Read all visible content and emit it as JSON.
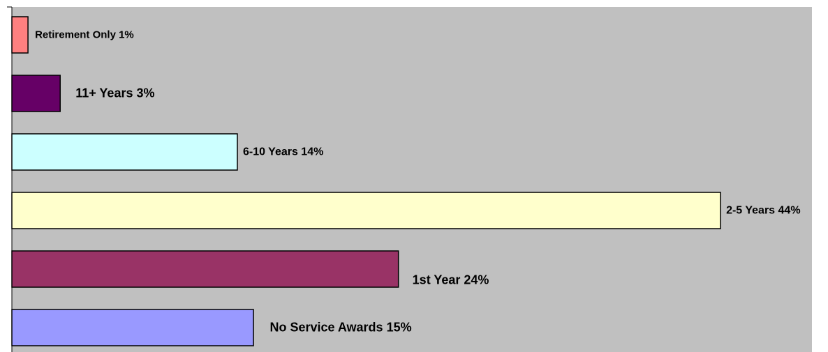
{
  "chart_data": {
    "type": "bar",
    "orientation": "horizontal",
    "values": [
      1,
      3,
      14,
      44,
      24,
      15
    ],
    "value_labels": [
      "Retirement Only 1%",
      "11+ Years 3%",
      "6-10 Years 14%",
      "2-5 Years 44%",
      "1st Year 24%",
      "No Service Awards 15%"
    ],
    "colors": [
      "#ff8080",
      "#660066",
      "#ccffff",
      "#ffffcc",
      "#993366",
      "#9999ff"
    ],
    "xlim": [
      0,
      50
    ]
  }
}
